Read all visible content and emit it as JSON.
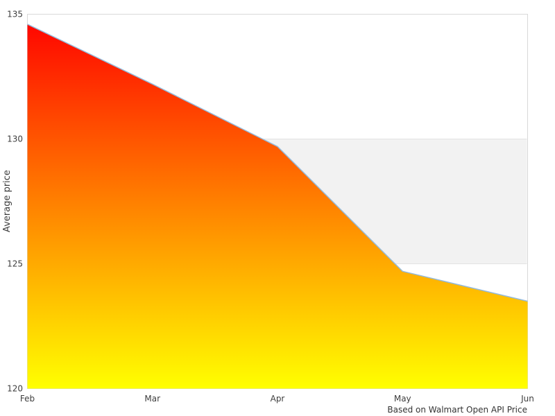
{
  "chart_data": {
    "type": "area",
    "title": "",
    "categories": [
      "Feb",
      "Mar",
      "Apr",
      "May",
      "Jun"
    ],
    "series": [
      {
        "name": "Average price",
        "values": [
          134.6,
          132.2,
          129.7,
          124.7,
          123.5
        ]
      }
    ],
    "xlabel": "",
    "ylabel": "Average price",
    "ylim": [
      120,
      135
    ],
    "yticks": [
      120,
      125,
      130,
      135
    ],
    "grid": "off",
    "legend": "none",
    "plot_band": {
      "from": 125,
      "to": 130,
      "color": "#f2f2f2",
      "edge_color": "#e2e2e2"
    },
    "caption": "Based on Walmart Open API Price",
    "colors": {
      "area_gradient_top": "#ff0000",
      "area_gradient_bottom": "#ffff00",
      "line": "#94badb",
      "plot_border": "#d9d9d9",
      "tick_text": "#3d3d3d",
      "caption_text": "#333333"
    }
  }
}
